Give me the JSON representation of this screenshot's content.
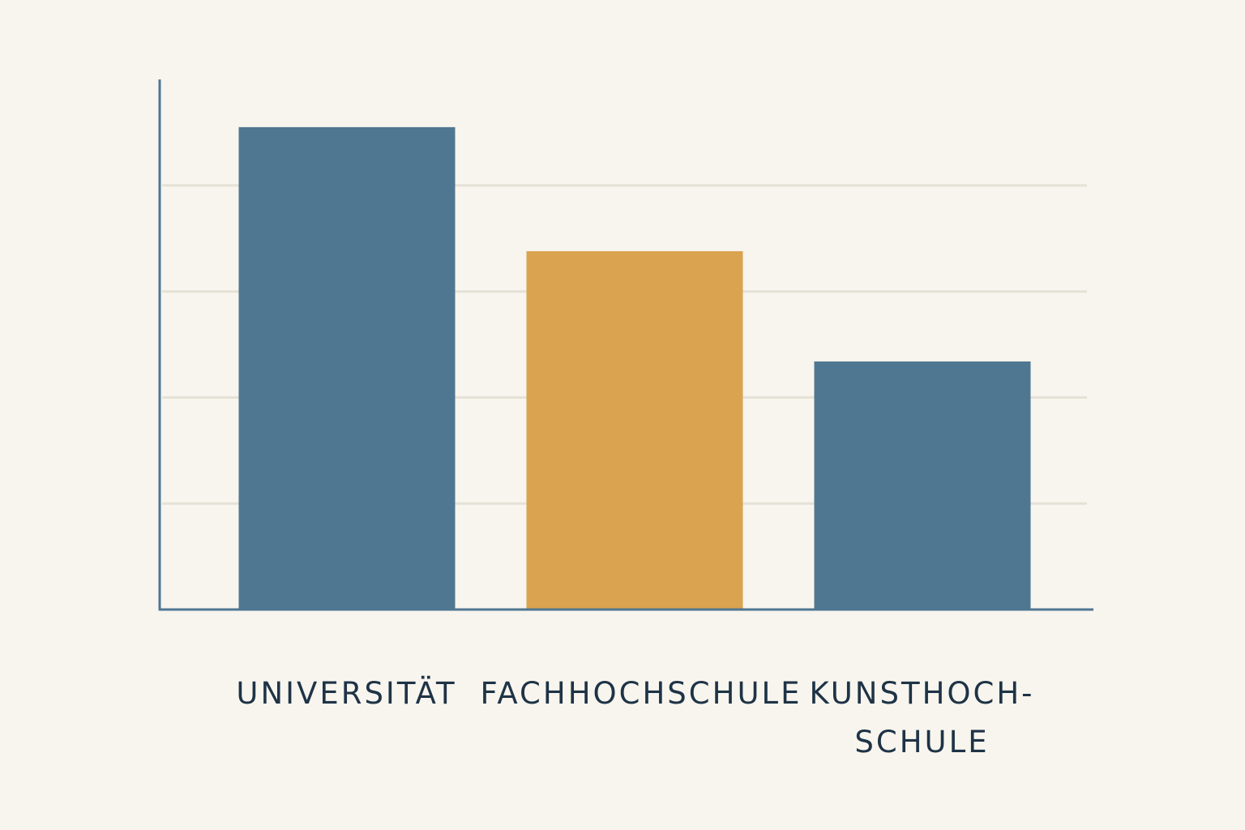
{
  "chart_data": {
    "type": "bar",
    "categories": [
      "UNIVERSITÄT",
      "FACHHOCHSCHULE",
      "KUNSTHOCH-\nSCHULE"
    ],
    "values": [
      4.55,
      3.38,
      2.34
    ],
    "colors": [
      "#4f7792",
      "#d9a34f",
      "#4f7792"
    ],
    "ylim": [
      0,
      5
    ],
    "yticks": [
      1,
      2,
      3,
      4
    ],
    "grid": true
  }
}
